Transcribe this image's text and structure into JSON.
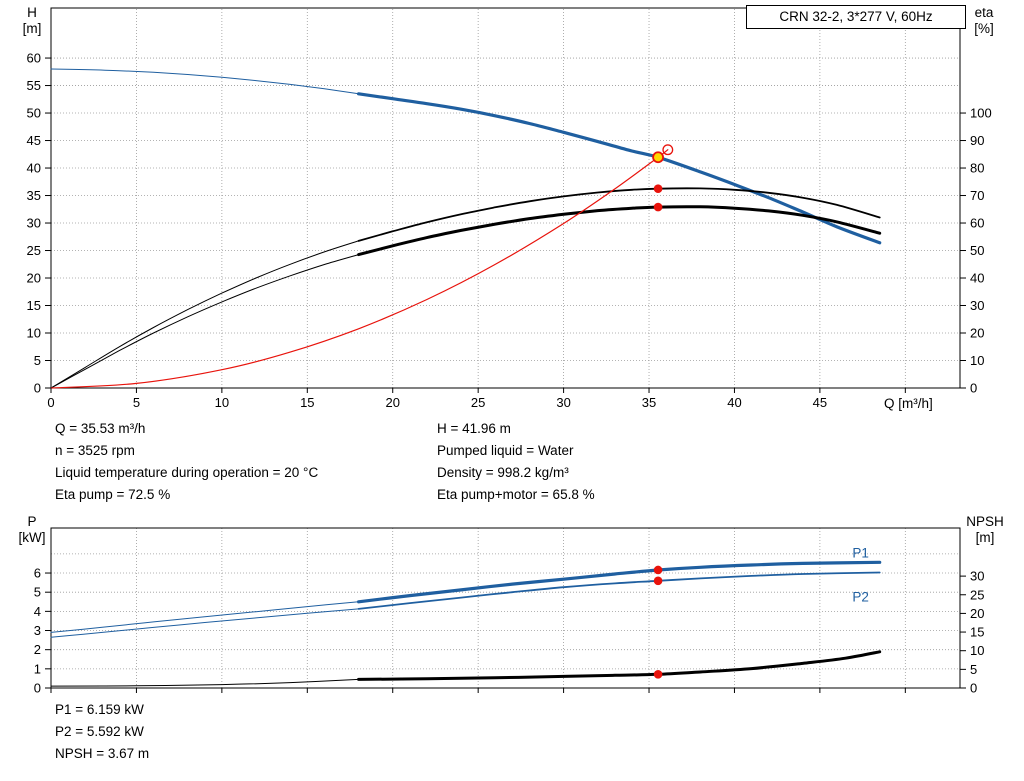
{
  "title_box": "CRN 32-2, 3*277 V, 60Hz",
  "colors": {
    "blue": "#1f5fa0",
    "black": "#000000",
    "red": "#e8130c",
    "yellow": "#ffd800",
    "grid": "#9a9a9a"
  },
  "info": {
    "left": [
      "Q = 35.53 m³/h",
      "n = 3525 rpm",
      "Liquid temperature during operation = 20 °C",
      "Eta pump = 72.5 %"
    ],
    "right": [
      "H = 41.96 m",
      "Pumped liquid = Water",
      "Density = 998.2 kg/m³",
      "Eta pump+motor = 65.8 %"
    ],
    "bottom": [
      "P1 = 6.159 kW",
      "P2 = 5.592 kW",
      "NPSH = 3.67 m"
    ]
  },
  "chart_data": [
    {
      "type": "line",
      "name": "qh-chart",
      "title": "CRN 32-2, 3*277 V, 60Hz",
      "x_axis": {
        "label": "Q [m³/h]",
        "min": 0,
        "max": 53.2,
        "ticks": [
          0,
          5,
          10,
          15,
          20,
          25,
          30,
          35,
          40,
          45
        ],
        "grid": [
          5,
          10,
          15,
          20,
          25,
          30,
          35,
          40,
          45,
          50
        ]
      },
      "left_axis": {
        "label": "H",
        "unit": "[m]",
        "min": 0,
        "max": 69.1,
        "ticks": [
          0,
          5,
          10,
          15,
          20,
          25,
          30,
          35,
          40,
          45,
          50,
          55,
          60
        ],
        "grid": [
          5,
          10,
          15,
          20,
          25,
          30,
          35,
          40,
          45,
          50,
          55,
          60
        ]
      },
      "right_axis": {
        "label": "eta",
        "unit": "[%]",
        "min": 0,
        "max": 138.2,
        "ticks": [
          0,
          10,
          20,
          30,
          40,
          50,
          60,
          70,
          80,
          90,
          100
        ]
      },
      "duty_point": {
        "Q_m3h": 35.53,
        "H_m": 41.96,
        "eta_pump_pct": 72.5,
        "eta_pump_motor_pct": 65.8
      },
      "series": [
        {
          "name": "head-lead",
          "axis": "left",
          "color": "blue",
          "width": 1,
          "points": [
            [
              0,
              58
            ],
            [
              2,
              57.9
            ],
            [
              4,
              57.7
            ],
            [
              6,
              57.4
            ],
            [
              8,
              57
            ],
            [
              10,
              56.5
            ],
            [
              12,
              55.9
            ],
            [
              14,
              55.2
            ],
            [
              16,
              54.4
            ],
            [
              18,
              53.5
            ]
          ]
        },
        {
          "name": "head",
          "axis": "left",
          "color": "blue",
          "width": 3.2,
          "points": [
            [
              18,
              53.5
            ],
            [
              20,
              52.6
            ],
            [
              22,
              51.7
            ],
            [
              24,
              50.7
            ],
            [
              26,
              49.5
            ],
            [
              28,
              48.1
            ],
            [
              30,
              46.5
            ],
            [
              32,
              44.8
            ],
            [
              34,
              43.1
            ],
            [
              35.53,
              41.96
            ],
            [
              38,
              39.3
            ],
            [
              40,
              37
            ],
            [
              42,
              34.6
            ],
            [
              44,
              32
            ],
            [
              46,
              29.3
            ],
            [
              48.5,
              26.4
            ]
          ]
        },
        {
          "name": "eta-pump-lead",
          "axis": "right",
          "color": "black",
          "width": 1,
          "points": [
            [
              0,
              0
            ],
            [
              2,
              7.5
            ],
            [
              4,
              15
            ],
            [
              6,
              22
            ],
            [
              8,
              28.5
            ],
            [
              10,
              34.5
            ],
            [
              12,
              40
            ],
            [
              14,
              45
            ],
            [
              16,
              49.5
            ],
            [
              18,
              53.5
            ]
          ]
        },
        {
          "name": "eta-pump",
          "axis": "right",
          "color": "black",
          "width": 1.8,
          "points": [
            [
              18,
              53.5
            ],
            [
              20,
              57
            ],
            [
              22,
              60.3
            ],
            [
              24,
              63.2
            ],
            [
              26,
              65.7
            ],
            [
              28,
              67.9
            ],
            [
              30,
              69.7
            ],
            [
              32,
              71.1
            ],
            [
              34,
              72.1
            ],
            [
              35.53,
              72.5
            ],
            [
              38,
              72.6
            ],
            [
              40,
              72.1
            ],
            [
              42,
              71
            ],
            [
              44,
              69.2
            ],
            [
              46,
              66.6
            ],
            [
              48.5,
              62
            ]
          ]
        },
        {
          "name": "eta-pump-motor-lead",
          "axis": "right",
          "color": "black",
          "width": 1,
          "points": [
            [
              0,
              0
            ],
            [
              2,
              6.8
            ],
            [
              4,
              13.6
            ],
            [
              6,
              20
            ],
            [
              8,
              25.9
            ],
            [
              10,
              31.3
            ],
            [
              12,
              36.3
            ],
            [
              14,
              40.8
            ],
            [
              16,
              44.9
            ],
            [
              18,
              48.5
            ]
          ]
        },
        {
          "name": "eta-pump-motor",
          "axis": "right",
          "color": "black",
          "width": 3,
          "points": [
            [
              18,
              48.5
            ],
            [
              20,
              51.7
            ],
            [
              22,
              54.7
            ],
            [
              24,
              57.3
            ],
            [
              26,
              59.6
            ],
            [
              28,
              61.6
            ],
            [
              30,
              63.2
            ],
            [
              32,
              64.5
            ],
            [
              34,
              65.4
            ],
            [
              35.53,
              65.8
            ],
            [
              38,
              65.9
            ],
            [
              40,
              65.4
            ],
            [
              42,
              64.4
            ],
            [
              44,
              62.8
            ],
            [
              46,
              60.4
            ],
            [
              48.5,
              56.3
            ]
          ]
        },
        {
          "name": "system-curve",
          "axis": "left",
          "color": "red",
          "width": 1.2,
          "points": [
            [
              0,
              0
            ],
            [
              5,
              0.83
            ],
            [
              10,
              3.32
            ],
            [
              14,
              6.52
            ],
            [
              18,
              10.77
            ],
            [
              22,
              16.09
            ],
            [
              26,
              22.47
            ],
            [
              30,
              29.92
            ],
            [
              33,
              36.21
            ],
            [
              35.53,
              41.96
            ],
            [
              36.1,
              43.33
            ]
          ]
        }
      ],
      "markers": [
        {
          "name": "requested-duty-marker",
          "type": "open",
          "x": 36.1,
          "v": 43.33,
          "axis": "left"
        },
        {
          "name": "eta-pump-marker",
          "type": "dot",
          "x": 35.53,
          "v": 72.5,
          "axis": "right"
        },
        {
          "name": "eta-pump-motor-marker",
          "type": "dot",
          "x": 35.53,
          "v": 65.8,
          "axis": "right"
        },
        {
          "name": "duty-point-marker",
          "type": "duty",
          "x": 35.53,
          "v": 41.96,
          "axis": "left"
        }
      ]
    },
    {
      "type": "line",
      "name": "power-chart",
      "x_axis": {
        "label": "",
        "min": 0,
        "max": 53.2,
        "ticks": [],
        "grid": [
          5,
          10,
          15,
          20,
          25,
          30,
          35,
          40,
          45,
          50
        ]
      },
      "left_axis": {
        "label": "P",
        "unit": "[kW]",
        "min": 0,
        "max": 8.35,
        "ticks": [
          0,
          1,
          2,
          3,
          4,
          5,
          6
        ],
        "grid": [
          1,
          2,
          3,
          4,
          5,
          6,
          7
        ]
      },
      "right_axis": {
        "label": "NPSH",
        "unit": "[m]",
        "min": 0,
        "max": 42.9,
        "ticks": [
          0,
          5,
          10,
          15,
          20,
          25,
          30
        ]
      },
      "duty_point": {
        "P1_kW": 6.159,
        "P2_kW": 5.592,
        "NPSH_m": 3.67
      },
      "series": [
        {
          "name": "p1-lead",
          "axis": "left",
          "color": "blue",
          "width": 1,
          "points": [
            [
              0,
              2.9
            ],
            [
              3,
              3.17
            ],
            [
              6,
              3.45
            ],
            [
              9,
              3.72
            ],
            [
              12,
              3.98
            ],
            [
              15,
              4.25
            ],
            [
              18,
              4.5
            ]
          ]
        },
        {
          "name": "p1",
          "axis": "left",
          "color": "blue",
          "width": 3.2,
          "points": [
            [
              18,
              4.5
            ],
            [
              21,
              4.82
            ],
            [
              24,
              5.12
            ],
            [
              27,
              5.42
            ],
            [
              30,
              5.68
            ],
            [
              33,
              5.95
            ],
            [
              35.53,
              6.159
            ],
            [
              38,
              6.3
            ],
            [
              41,
              6.42
            ],
            [
              44,
              6.5
            ],
            [
              48.5,
              6.56
            ]
          ]
        },
        {
          "name": "p2-lead",
          "axis": "left",
          "color": "blue",
          "width": 1,
          "points": [
            [
              0,
              2.65
            ],
            [
              3,
              2.9
            ],
            [
              6,
              3.16
            ],
            [
              9,
              3.42
            ],
            [
              12,
              3.66
            ],
            [
              15,
              3.9
            ],
            [
              18,
              4.13
            ]
          ]
        },
        {
          "name": "p2",
          "axis": "left",
          "color": "blue",
          "width": 1.8,
          "points": [
            [
              18,
              4.13
            ],
            [
              21,
              4.43
            ],
            [
              24,
              4.72
            ],
            [
              27,
              5.0
            ],
            [
              30,
              5.26
            ],
            [
              33,
              5.46
            ],
            [
              35.53,
              5.592
            ],
            [
              38,
              5.72
            ],
            [
              41,
              5.85
            ],
            [
              44,
              5.95
            ],
            [
              48.5,
              6.03
            ]
          ]
        },
        {
          "name": "npsh-lead",
          "axis": "right",
          "color": "black",
          "width": 1,
          "points": [
            [
              0,
              0.5
            ],
            [
              5,
              0.6
            ],
            [
              10,
              0.9
            ],
            [
              14,
              1.45
            ],
            [
              18,
              2.3
            ]
          ]
        },
        {
          "name": "npsh",
          "axis": "right",
          "color": "black",
          "width": 3,
          "points": [
            [
              18,
              2.3
            ],
            [
              22,
              2.5
            ],
            [
              26,
              2.75
            ],
            [
              30,
              3.1
            ],
            [
              33,
              3.4
            ],
            [
              35.53,
              3.67
            ],
            [
              38,
              4.3
            ],
            [
              41,
              5.2
            ],
            [
              44,
              6.6
            ],
            [
              46.5,
              8.0
            ],
            [
              48.5,
              9.7
            ]
          ]
        }
      ],
      "markers": [
        {
          "name": "p1-marker",
          "type": "dot",
          "x": 35.53,
          "v": 6.159,
          "axis": "left"
        },
        {
          "name": "p2-marker",
          "type": "dot",
          "x": 35.53,
          "v": 5.592,
          "axis": "left"
        },
        {
          "name": "npsh-marker",
          "type": "dot",
          "x": 35.53,
          "v": 3.67,
          "axis": "right"
        }
      ],
      "labels": [
        {
          "name": "p1-label",
          "text": "P1",
          "q": 46.9,
          "v": 6.8,
          "axis": "left",
          "color": "blue"
        },
        {
          "name": "p2-label",
          "text": "P2",
          "q": 46.9,
          "v": 4.52,
          "axis": "left",
          "color": "blue"
        }
      ]
    }
  ]
}
